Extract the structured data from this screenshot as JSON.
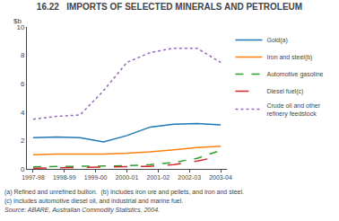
{
  "chart_data": {
    "type": "line",
    "title": "16.22   IMPORTS OF SELECTED MINERALS AND PETROLEUM",
    "ylabel": "$b",
    "x": [
      0,
      0.75,
      1.5,
      2.25,
      3,
      3.75,
      4.5,
      5.25,
      6
    ],
    "series": [
      {
        "name": "Gold(a)",
        "line_style": "solid",
        "values": [
          2.2,
          2.25,
          2.2,
          1.9,
          2.35,
          2.95,
          3.15,
          3.2,
          3.1
        ]
      },
      {
        "name": "Iron and steel(b)",
        "line_style": "solid",
        "values": [
          1.0,
          1.05,
          1.05,
          1.05,
          1.1,
          1.2,
          1.35,
          1.5,
          1.6
        ]
      },
      {
        "name": "Automotive gasoline",
        "line_style": "dashed",
        "values": [
          0.15,
          0.18,
          0.2,
          0.2,
          0.22,
          0.3,
          0.45,
          0.75,
          1.3
        ]
      },
      {
        "name": "Diesel fuel(c)",
        "line_style": "long-dashed",
        "values": [
          0.05,
          0.07,
          0.08,
          0.1,
          0.12,
          0.18,
          0.3,
          0.55,
          0.9
        ]
      },
      {
        "name": "Crude oil and other\nrefinery feedstock",
        "line_style": "dotted",
        "values": [
          3.5,
          3.7,
          3.8,
          5.5,
          7.5,
          8.2,
          8.5,
          8.5,
          7.5
        ]
      }
    ],
    "xlim": [
      -0.2,
      6.2
    ],
    "xticks": [
      {
        "value": 0,
        "label": "1997-98"
      },
      {
        "value": 1,
        "label": "1998-99"
      },
      {
        "value": 2,
        "label": "1999-00"
      },
      {
        "value": 3,
        "label": "2000-01"
      },
      {
        "value": 4,
        "label": "2001-02"
      },
      {
        "value": 5,
        "label": "2002-03"
      },
      {
        "value": 6,
        "label": "2003-04"
      }
    ],
    "ylim": [
      0,
      10
    ],
    "yticks": [
      0,
      2,
      4,
      6,
      8,
      10
    ],
    "grid": false,
    "legend": "right",
    "annotations": [
      "(a) Refined and unrefined bullion.  (b) Includes iron ore and pellets, and iron and steel.",
      "(c) Includes automotive diesel oil, and industrial and marine fuel."
    ],
    "source": "Source: ABARE, Australian Commodity Statistics, 2004."
  }
}
